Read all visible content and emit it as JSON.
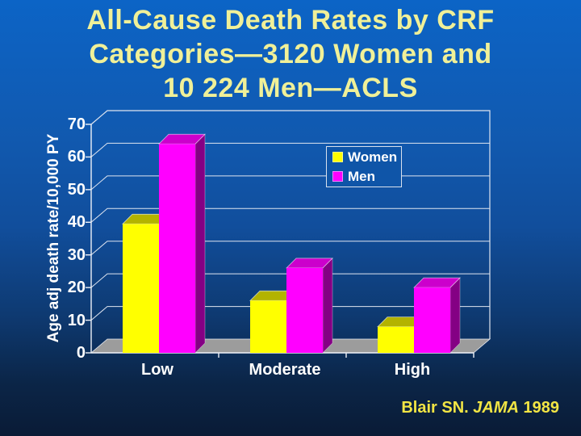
{
  "slide": {
    "title_lines": [
      "All-Cause Death Rates by CRF",
      "Categories—3120 Women and",
      "10 224 Men—ACLS"
    ],
    "citation": {
      "author": "Blair SN.",
      "journal": "JAMA",
      "year": "1989"
    }
  },
  "chart_data": {
    "type": "bar",
    "style_3d": true,
    "categories": [
      "Low",
      "Moderate",
      "High"
    ],
    "series": [
      {
        "name": "Women",
        "color": "#ffff00",
        "top_color": "#b3b300",
        "side_color": "#7a7a00",
        "values": [
          39.5,
          16,
          8
        ]
      },
      {
        "name": "Men",
        "color": "#ff00ff",
        "top_color": "#cc00cc",
        "side_color": "#840084",
        "values": [
          64,
          26,
          20
        ]
      }
    ],
    "title": "All-Cause Death Rates by CRF Categories—3120 Women and 10 224 Men—ACLS",
    "xlabel": "",
    "ylabel": "Age adj death rate/10,000 PY",
    "ylim": [
      0,
      70
    ],
    "yticks": [
      0,
      10,
      20,
      30,
      40,
      50,
      60,
      70
    ],
    "grid": true,
    "legend_position": "top-right"
  },
  "palette": {
    "title_text": "#f0f098",
    "axis_text": "#ffffff",
    "citation_text": "#f2e544",
    "gridline": "#dfe5f0",
    "floor": "#9c9c9c",
    "background_top": "#0c64c6",
    "background_bottom": "#0a1b36"
  }
}
